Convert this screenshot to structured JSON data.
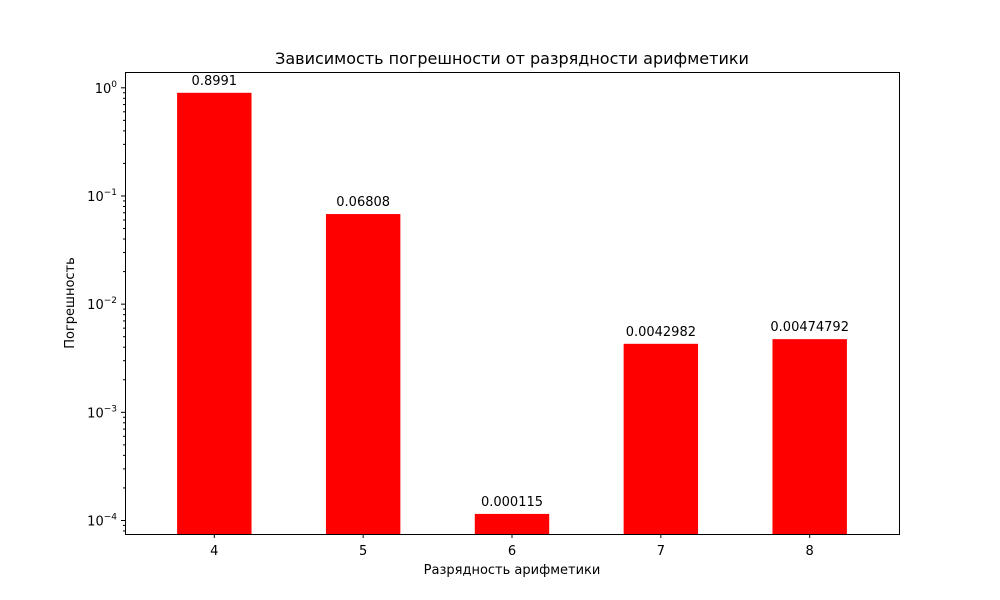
{
  "chart_data": {
    "type": "bar",
    "title": "Зависимость погрешности от разрядности арифметики",
    "xlabel": "Разрядность арифметики",
    "ylabel": "Погрешность",
    "categories": [
      "4",
      "5",
      "6",
      "7",
      "8"
    ],
    "values": [
      0.8991,
      0.06808,
      0.000115,
      0.0042982,
      0.00474792
    ],
    "value_labels": [
      "0.8991",
      "0.06808",
      "0.000115",
      "0.0042982",
      "0.00474792"
    ],
    "y_scale": "log",
    "ylim": [
      7.5e-05,
      1.4
    ],
    "y_ticks": [
      {
        "value": 1,
        "base": "10",
        "exp": "0"
      },
      {
        "value": 0.1,
        "base": "10",
        "exp": "−1"
      },
      {
        "value": 0.01,
        "base": "10",
        "exp": "−2"
      },
      {
        "value": 0.001,
        "base": "10",
        "exp": "−3"
      },
      {
        "value": 0.0001,
        "base": "10",
        "exp": "−4"
      }
    ],
    "bar_color": "#ff0000",
    "grid": false,
    "legend": "none"
  }
}
